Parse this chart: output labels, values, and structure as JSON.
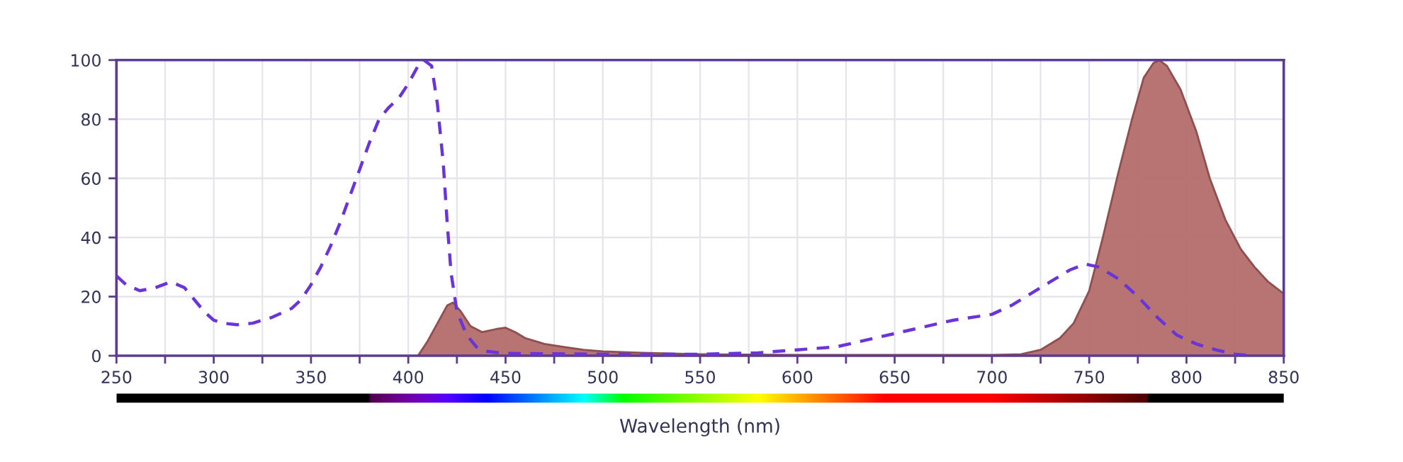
{
  "chart_data": {
    "type": "line",
    "xlabel": "Wavelength (nm)",
    "xlim": [
      250,
      850
    ],
    "ylim": [
      0,
      100
    ],
    "xticks": [
      250,
      {
        "value": 275,
        "label": null
      },
      300,
      {
        "value": 325,
        "label": null
      },
      350,
      {
        "value": 375,
        "label": null
      },
      400,
      {
        "value": 425,
        "label": null
      },
      450,
      {
        "value": 475,
        "label": null
      },
      500,
      {
        "value": 525,
        "label": null
      },
      550,
      {
        "value": 575,
        "label": null
      },
      600,
      {
        "value": 625,
        "label": null
      },
      650,
      {
        "value": 675,
        "label": null
      },
      700,
      {
        "value": 725,
        "label": null
      },
      750,
      {
        "value": 775,
        "label": null
      },
      800,
      {
        "value": 825,
        "label": null
      },
      850
    ],
    "yticks": [
      0,
      20,
      40,
      60,
      80,
      100
    ],
    "grid": true,
    "legend": false,
    "series": [
      {
        "type": "area",
        "color": "#b36d6b",
        "x": [
          405,
          410,
          415,
          420,
          423,
          427,
          432,
          438,
          445,
          450,
          455,
          460,
          470,
          480,
          490,
          500,
          520,
          550,
          600,
          700,
          715,
          725,
          735,
          742,
          750,
          757,
          765,
          772,
          778,
          783,
          786,
          790,
          797,
          805,
          812,
          820,
          828,
          835,
          842,
          850
        ],
        "values": [
          0,
          5,
          11,
          17,
          18,
          15,
          10,
          8,
          9,
          9.5,
          8,
          6,
          4,
          3,
          2,
          1.5,
          1,
          0.5,
          0.3,
          0.3,
          0.5,
          2,
          6,
          11,
          22,
          40,
          62,
          80,
          94,
          99,
          100,
          98,
          90,
          76,
          60,
          46,
          36,
          30,
          25,
          21
        ]
      },
      {
        "line_style": "dashed",
        "color": "#6a35d8",
        "x": [
          250,
          255,
          262,
          270,
          278,
          285,
          290,
          295,
          300,
          305,
          312,
          320,
          330,
          340,
          345,
          350,
          355,
          360,
          365,
          370,
          375,
          380,
          385,
          390,
          395,
          400,
          405,
          408,
          412,
          415,
          418,
          420,
          422,
          425,
          430,
          435,
          440,
          450,
          500,
          550,
          580,
          600,
          620,
          640,
          660,
          680,
          700,
          710,
          720,
          730,
          740,
          748,
          755,
          765,
          775,
          785,
          795,
          805,
          815,
          825,
          835
        ],
        "values": [
          27,
          24,
          22,
          23,
          25,
          23,
          19,
          15,
          12,
          11,
          10.5,
          11,
          13,
          16,
          19,
          24,
          30,
          37,
          45,
          54,
          63,
          72,
          80,
          84,
          87,
          92,
          98,
          100,
          98,
          85,
          65,
          45,
          28,
          15,
          7,
          3,
          1.5,
          0.8,
          0.5,
          0.5,
          1,
          2,
          3,
          6,
          9,
          12,
          14,
          17,
          21,
          25,
          29,
          31,
          30,
          26,
          20,
          13,
          7,
          4,
          2,
          0.5,
          0
        ]
      }
    ]
  }
}
